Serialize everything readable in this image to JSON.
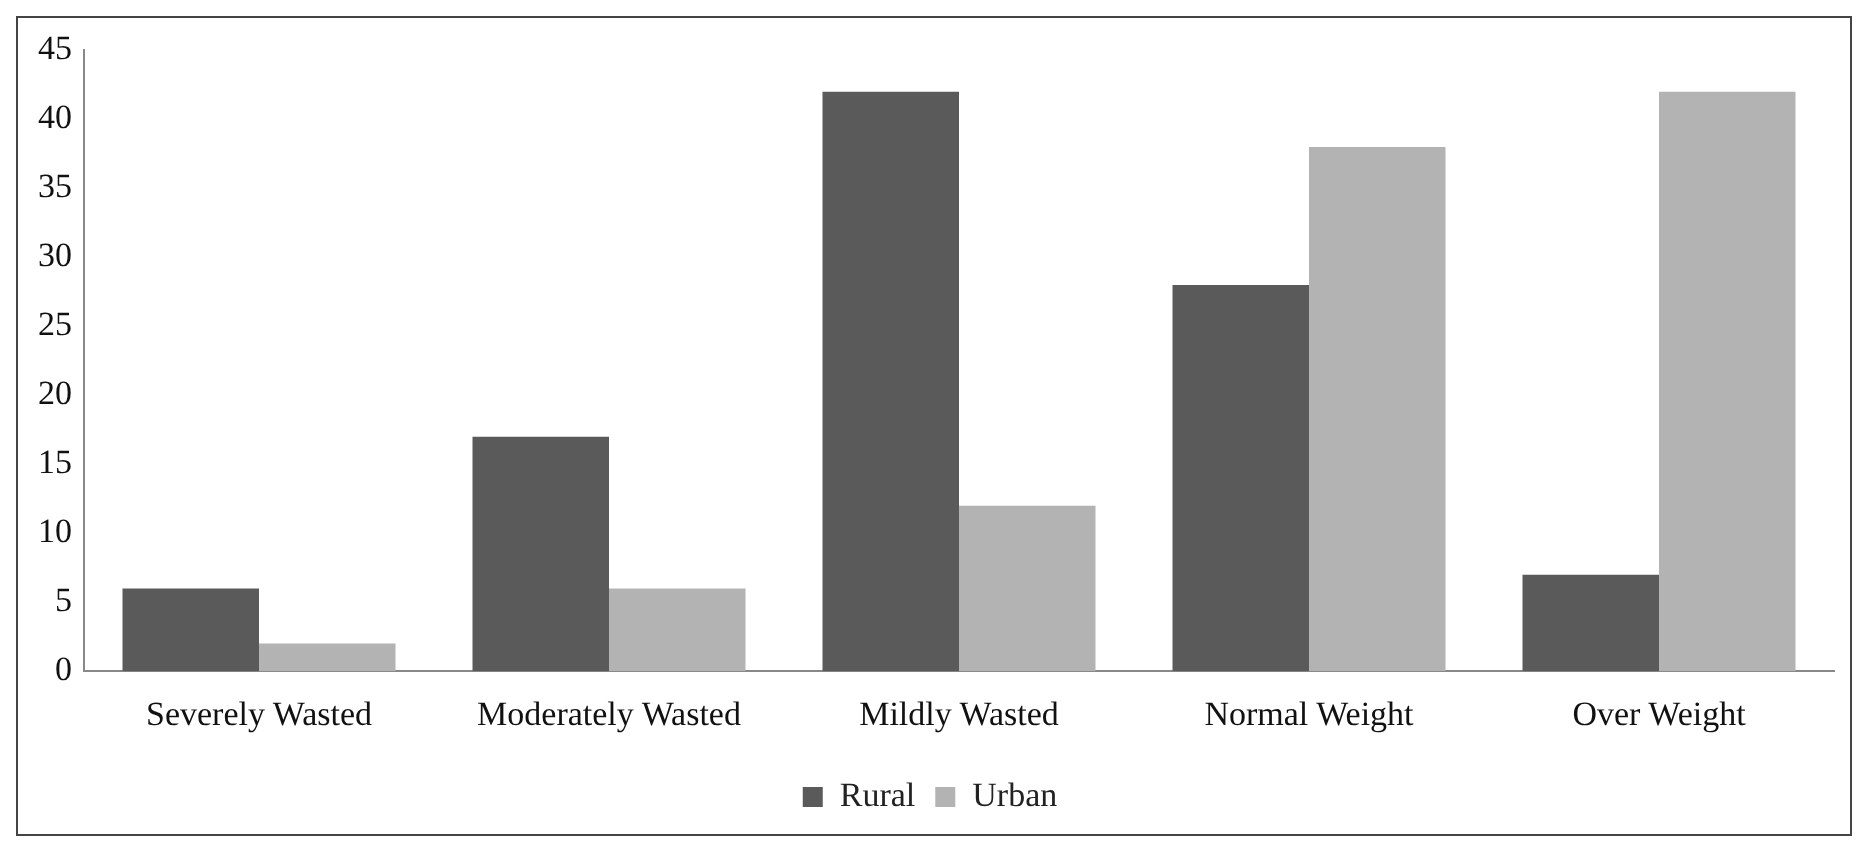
{
  "chart_data": {
    "type": "bar",
    "categories": [
      "Severely Wasted",
      "Moderately Wasted",
      "Mildly Wasted",
      "Normal Weight",
      "Over Weight"
    ],
    "series": [
      {
        "name": "Rural",
        "color": "#5a5a5a",
        "values": [
          6,
          17,
          42,
          28,
          7
        ]
      },
      {
        "name": "Urban",
        "color": "#b3b3b3",
        "values": [
          2,
          6,
          12,
          38,
          42
        ]
      }
    ],
    "ylim": [
      0,
      45
    ],
    "yticks": [
      0,
      5,
      10,
      15,
      20,
      25,
      30,
      35,
      40,
      45
    ],
    "grid": false,
    "legend": "bottom"
  }
}
